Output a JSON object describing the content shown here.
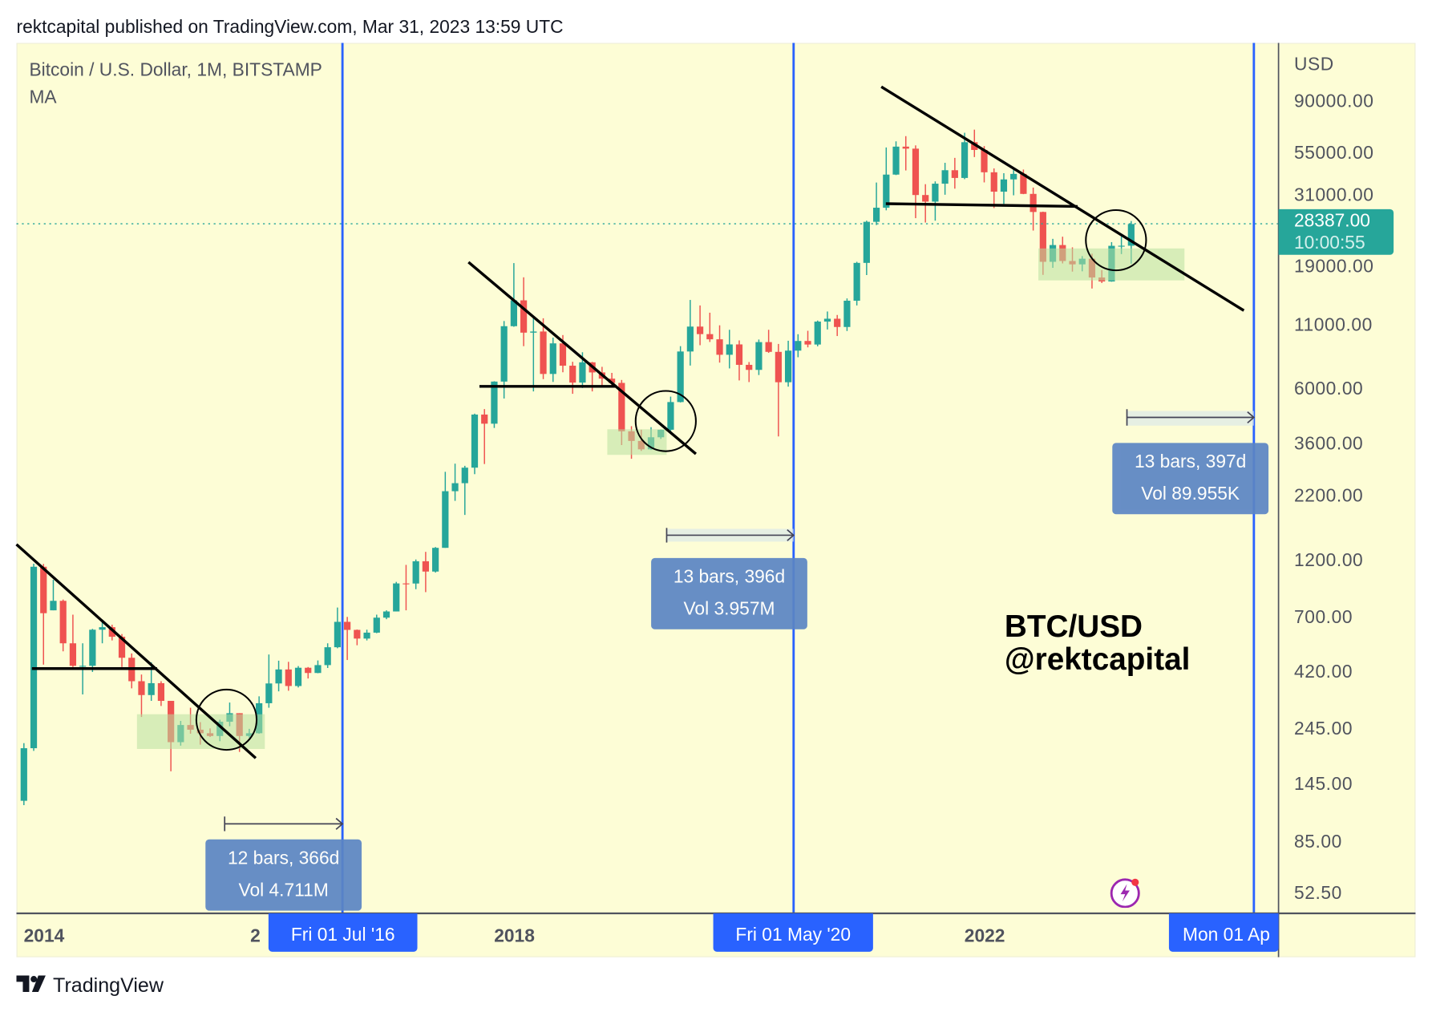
{
  "header": {
    "published": "rektcapital published on TradingView.com, Mar 31, 2023 13:59 UTC"
  },
  "legend": {
    "symbol": "Bitcoin / U.S. Dollar, 1M, BITSTAMP",
    "indicator": "MA"
  },
  "price_axis": {
    "currency": "USD",
    "labels": [
      "90000.00",
      "55000.00",
      "31000.00",
      "19000.00",
      "11000.00",
      "6000.00",
      "3600.00",
      "2200.00",
      "1200.00",
      "700.00",
      "420.00",
      "245.00",
      "145.00",
      "85.00",
      "52.50"
    ]
  },
  "last_price": {
    "value": "28387.00",
    "countdown": "10:00:55"
  },
  "time_axis": {
    "years": [
      "2014",
      "2",
      "2018",
      "2022"
    ],
    "markers": [
      "Fri 01 Jul '16",
      "Fri 01 May '20",
      "Mon 01 Ap"
    ]
  },
  "ranges": [
    {
      "bars": "12 bars, 366d",
      "vol": "Vol 4.711M"
    },
    {
      "bars": "13 bars, 396d",
      "vol": "Vol 3.957M"
    },
    {
      "bars": "13 bars, 397d",
      "vol": "Vol 89.955K"
    }
  ],
  "watermark": {
    "line1": "BTC/USD",
    "line2": "@rektcapital"
  },
  "footer": {
    "brand": "TradingView",
    "mark": "TV"
  },
  "colors": {
    "up": "#26a69a",
    "down": "#ef5350",
    "marker": "#2962ff",
    "background": "#fdfdd6"
  },
  "chart_data": {
    "type": "candlestick",
    "title": "Bitcoin / U.S. Dollar, 1M, BITSTAMP",
    "yscale": "log",
    "ylim": [
      52.5,
      90000
    ],
    "xlabel": "",
    "ylabel": "USD",
    "last": 28387,
    "candles": [
      [
        "2013-10",
        125,
        215,
        120,
        205
      ],
      [
        "2013-11",
        205,
        1163,
        200,
        1130
      ],
      [
        "2013-12",
        1130,
        1160,
        450,
        730
      ],
      [
        "2014-01",
        750,
        1000,
        750,
        820
      ],
      [
        "2014-02",
        820,
        830,
        510,
        550
      ],
      [
        "2014-03",
        550,
        720,
        440,
        445
      ],
      [
        "2014-04",
        445,
        550,
        340,
        445
      ],
      [
        "2014-05",
        445,
        630,
        420,
        625
      ],
      [
        "2014-06",
        625,
        680,
        550,
        640
      ],
      [
        "2014-07",
        640,
        655,
        565,
        585
      ],
      [
        "2014-08",
        585,
        600,
        440,
        480
      ],
      [
        "2014-09",
        480,
        500,
        360,
        385
      ],
      [
        "2014-10",
        385,
        410,
        275,
        338
      ],
      [
        "2014-11",
        338,
        460,
        320,
        378
      ],
      [
        "2014-12",
        378,
        385,
        305,
        320
      ],
      [
        "2015-01",
        320,
        320,
        165,
        217
      ],
      [
        "2015-02",
        217,
        265,
        210,
        255
      ],
      [
        "2015-03",
        255,
        300,
        235,
        244
      ],
      [
        "2015-04",
        244,
        262,
        212,
        236
      ],
      [
        "2015-05",
        236,
        247,
        228,
        230
      ],
      [
        "2015-06",
        230,
        268,
        219,
        263
      ],
      [
        "2015-07",
        263,
        315,
        252,
        285
      ],
      [
        "2015-08",
        285,
        285,
        198,
        230
      ],
      [
        "2015-09",
        230,
        246,
        226,
        236
      ],
      [
        "2015-10",
        236,
        334,
        235,
        313
      ],
      [
        "2015-11",
        313,
        495,
        300,
        377
      ],
      [
        "2015-12",
        377,
        467,
        350,
        430
      ],
      [
        "2016-01",
        430,
        462,
        352,
        368
      ],
      [
        "2016-02",
        368,
        444,
        363,
        437
      ],
      [
        "2016-03",
        437,
        440,
        395,
        416
      ],
      [
        "2016-04",
        416,
        468,
        415,
        448
      ],
      [
        "2016-05",
        448,
        550,
        436,
        530
      ],
      [
        "2016-06",
        530,
        770,
        525,
        673
      ],
      [
        "2016-07",
        673,
        705,
        470,
        624
      ],
      [
        "2016-08",
        624,
        626,
        540,
        575
      ],
      [
        "2016-09",
        575,
        625,
        565,
        608
      ],
      [
        "2016-10",
        608,
        720,
        605,
        700
      ],
      [
        "2016-11",
        700,
        750,
        690,
        742
      ],
      [
        "2016-12",
        742,
        980,
        742,
        966
      ],
      [
        "2017-01",
        966,
        1150,
        750,
        965
      ],
      [
        "2017-02",
        965,
        1210,
        915,
        1190
      ],
      [
        "2017-03",
        1190,
        1300,
        890,
        1080
      ],
      [
        "2017-04",
        1080,
        1360,
        1070,
        1350
      ],
      [
        "2017-05",
        1350,
        2760,
        1350,
        2300
      ],
      [
        "2017-06",
        2300,
        2980,
        2100,
        2480
      ],
      [
        "2017-07",
        2480,
        2920,
        1840,
        2870
      ],
      [
        "2017-08",
        2870,
        4770,
        2700,
        4730
      ],
      [
        "2017-09",
        4730,
        4980,
        2970,
        4340
      ],
      [
        "2017-10",
        4340,
        6470,
        4170,
        6450
      ],
      [
        "2017-11",
        6450,
        11400,
        5500,
        10860
      ],
      [
        "2017-12",
        10860,
        19660,
        10800,
        13850
      ],
      [
        "2018-01",
        13850,
        17200,
        9000,
        10220
      ],
      [
        "2018-02",
        10220,
        11790,
        5880,
        10330
      ],
      [
        "2018-03",
        10330,
        11700,
        6600,
        6930
      ],
      [
        "2018-04",
        6930,
        9750,
        6430,
        9240
      ],
      [
        "2018-05",
        9240,
        9990,
        7040,
        7490
      ],
      [
        "2018-06",
        7490,
        7770,
        5750,
        6390
      ],
      [
        "2018-07",
        6390,
        8500,
        6070,
        7730
      ],
      [
        "2018-08",
        7730,
        7760,
        5880,
        7030
      ],
      [
        "2018-09",
        7030,
        7410,
        6100,
        6630
      ],
      [
        "2018-10",
        6630,
        7000,
        6200,
        6370
      ],
      [
        "2018-11",
        6370,
        6550,
        3550,
        4040
      ],
      [
        "2018-12",
        4040,
        4240,
        3120,
        3690
      ],
      [
        "2019-01",
        3690,
        4100,
        3360,
        3410
      ],
      [
        "2019-02",
        3410,
        4200,
        3390,
        3820
      ],
      [
        "2019-03",
        3820,
        4110,
        3760,
        4100
      ],
      [
        "2019-04",
        4100,
        5600,
        4050,
        5320
      ],
      [
        "2019-05",
        5320,
        9000,
        5300,
        8560
      ],
      [
        "2019-06",
        8560,
        13900,
        7500,
        10820
      ],
      [
        "2019-07",
        10820,
        13200,
        9080,
        10080
      ],
      [
        "2019-08",
        10080,
        12330,
        9360,
        9600
      ],
      [
        "2019-09",
        9600,
        10950,
        7710,
        8300
      ],
      [
        "2019-10",
        8300,
        10500,
        7300,
        9150
      ],
      [
        "2019-11",
        9150,
        9500,
        6520,
        7550
      ],
      [
        "2019-12",
        7550,
        7750,
        6420,
        7200
      ],
      [
        "2020-01",
        7200,
        9580,
        6860,
        9350
      ],
      [
        "2020-02",
        9350,
        10500,
        8450,
        8530
      ],
      [
        "2020-03",
        8530,
        9190,
        3850,
        6410
      ],
      [
        "2020-04",
        6410,
        9470,
        6150,
        8630
      ],
      [
        "2020-05",
        8630,
        10070,
        8110,
        9450
      ],
      [
        "2020-06",
        9450,
        10400,
        8900,
        9140
      ],
      [
        "2020-07",
        9140,
        11450,
        8990,
        11340
      ],
      [
        "2020-08",
        11340,
        12470,
        10530,
        11650
      ],
      [
        "2020-09",
        11650,
        12070,
        9900,
        10780
      ],
      [
        "2020-10",
        10780,
        14100,
        10380,
        13800
      ],
      [
        "2020-11",
        13800,
        19900,
        13200,
        19700
      ],
      [
        "2020-12",
        19700,
        29300,
        17570,
        28990
      ],
      [
        "2021-01",
        28990,
        41950,
        28130,
        33100
      ],
      [
        "2021-02",
        33100,
        58350,
        32300,
        45200
      ],
      [
        "2021-03",
        45200,
        61800,
        45000,
        58800
      ],
      [
        "2021-04",
        58800,
        64900,
        47000,
        57700
      ],
      [
        "2021-05",
        57700,
        59500,
        30000,
        37300
      ],
      [
        "2021-06",
        37300,
        41300,
        28800,
        35050
      ],
      [
        "2021-07",
        35050,
        42400,
        29300,
        41500
      ],
      [
        "2021-08",
        41500,
        50500,
        37400,
        47100
      ],
      [
        "2021-09",
        47100,
        52900,
        39600,
        43800
      ],
      [
        "2021-10",
        43800,
        67000,
        43300,
        61300
      ],
      [
        "2021-11",
        61300,
        69000,
        53300,
        57000
      ],
      [
        "2021-12",
        57000,
        59100,
        42000,
        46200
      ],
      [
        "2022-01",
        46200,
        47900,
        33000,
        38500
      ],
      [
        "2022-02",
        38500,
        45800,
        34300,
        43200
      ],
      [
        "2022-03",
        43200,
        48200,
        37200,
        45500
      ],
      [
        "2022-04",
        45500,
        47400,
        37600,
        37700
      ],
      [
        "2022-05",
        37700,
        40000,
        26700,
        31800
      ],
      [
        "2022-06",
        31800,
        31900,
        17600,
        19900
      ],
      [
        "2022-07",
        19900,
        24700,
        18800,
        23300
      ],
      [
        "2022-08",
        23300,
        25200,
        19600,
        20050
      ],
      [
        "2022-09",
        20050,
        22800,
        18150,
        19430
      ],
      [
        "2022-10",
        19430,
        21000,
        18200,
        20490
      ],
      [
        "2022-11",
        20490,
        21480,
        15480,
        17170
      ],
      [
        "2022-12",
        17170,
        18400,
        16300,
        16540
      ],
      [
        "2023-01",
        16540,
        23950,
        16500,
        23130
      ],
      [
        "2023-02",
        23130,
        25250,
        21400,
        23150
      ],
      [
        "2023-03",
        23150,
        29200,
        19550,
        28387
      ]
    ]
  }
}
